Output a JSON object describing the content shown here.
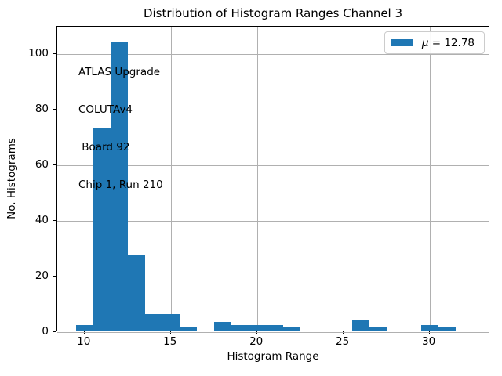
{
  "chart_data": {
    "type": "bar",
    "title": "Distribution of Histogram Ranges Channel 3",
    "xlabel": "Histogram Range",
    "ylabel": "No. Histograms",
    "bin_centers": [
      10,
      11,
      12,
      13,
      14,
      15,
      16,
      17,
      18,
      19,
      20,
      21,
      22,
      23,
      24,
      25,
      26,
      27,
      28,
      29,
      30,
      31
    ],
    "values": [
      2,
      73,
      104,
      27,
      6,
      6,
      1,
      0,
      3,
      2,
      2,
      2,
      1,
      0,
      0,
      0,
      4,
      1,
      0,
      0,
      2,
      1
    ],
    "bin_width": 1.0,
    "xlim": [
      8.42,
      33.52
    ],
    "ylim": [
      0,
      110
    ],
    "xticks": [
      10,
      15,
      20,
      25,
      30
    ],
    "yticks": [
      0,
      20,
      40,
      60,
      80,
      100
    ],
    "grid": true,
    "legend": {
      "position": "upper right",
      "symbol": "μ",
      "text": " = 12.78",
      "label": "μ = 12.78"
    },
    "annotation_lines": [
      "ATLAS Upgrade",
      "COLUTAv4",
      " Board 92",
      "Chip 1, Run 210"
    ],
    "colors": {
      "bar": "#1f77b4",
      "grid": "#b0b0b0",
      "spine": "#000000",
      "legend_border": "#cccccc",
      "background": "#ffffff"
    }
  }
}
